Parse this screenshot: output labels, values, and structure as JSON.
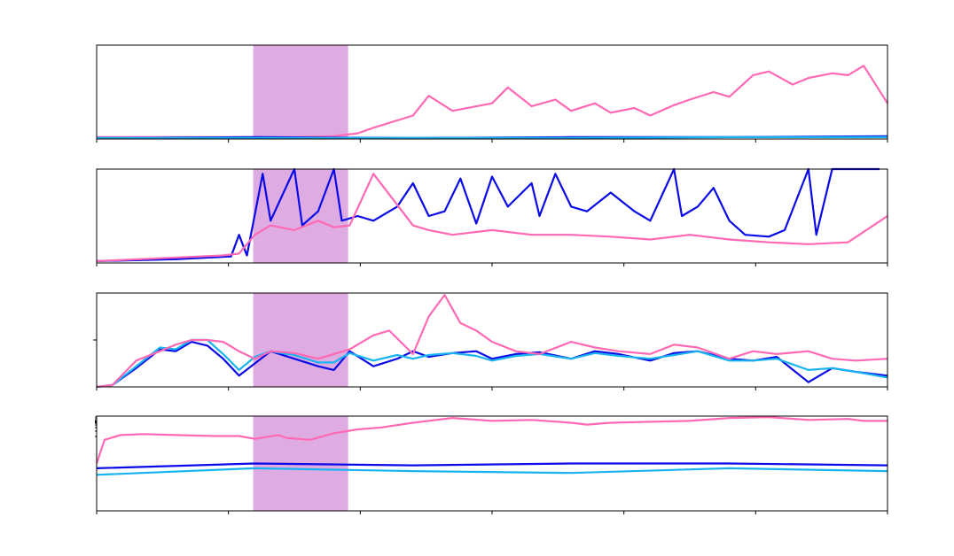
{
  "colors": {
    "blue": "#0a0ae6",
    "cyan": "#19b4f0",
    "pink": "#ff69b4",
    "shade": "#dca8e0",
    "axis": "#000000",
    "background": "#ffffff"
  },
  "chart_data": [
    {
      "type": "line",
      "title": "",
      "xlabel": "",
      "ylabel": "",
      "xlim": [
        0,
        1
      ],
      "ylim": [
        0,
        1
      ],
      "grid": false,
      "legend": "none",
      "shaded_x_range": [
        0.198,
        0.318
      ],
      "series": [
        {
          "color": "pink",
          "x": [
            0,
            0.05,
            0.1,
            0.15,
            0.2,
            0.25,
            0.3,
            0.33,
            0.35,
            0.4,
            0.42,
            0.45,
            0.5,
            0.52,
            0.55,
            0.58,
            0.6,
            0.63,
            0.65,
            0.68,
            0.7,
            0.73,
            0.75,
            0.78,
            0.8,
            0.83,
            0.85,
            0.88,
            0.9,
            0.93,
            0.95,
            0.97,
            1.0
          ],
          "y": [
            0.02,
            0.02,
            0.02,
            0.02,
            0.02,
            0.02,
            0.03,
            0.06,
            0.12,
            0.25,
            0.46,
            0.3,
            0.38,
            0.55,
            0.35,
            0.42,
            0.3,
            0.38,
            0.28,
            0.33,
            0.25,
            0.36,
            0.42,
            0.5,
            0.45,
            0.68,
            0.72,
            0.58,
            0.65,
            0.7,
            0.68,
            0.78,
            0.38
          ]
        },
        {
          "color": "blue",
          "x": [
            0,
            0.2,
            0.4,
            0.6,
            0.8,
            1.0
          ],
          "y": [
            0.01,
            0.02,
            0.01,
            0.02,
            0.02,
            0.03
          ]
        },
        {
          "color": "cyan",
          "x": [
            0,
            0.2,
            0.4,
            0.6,
            0.8,
            1.0
          ],
          "y": [
            0.01,
            0.01,
            0.01,
            0.01,
            0.02,
            0.02
          ]
        }
      ]
    },
    {
      "type": "line",
      "title": "",
      "xlabel": "",
      "ylabel": "",
      "xlim": [
        0,
        1
      ],
      "ylim": [
        0,
        1
      ],
      "grid": false,
      "legend": "none",
      "shaded_x_range": [
        0.198,
        0.318
      ],
      "series": [
        {
          "color": "blue",
          "x": [
            0,
            0.1,
            0.17,
            0.18,
            0.19,
            0.21,
            0.22,
            0.25,
            0.26,
            0.28,
            0.3,
            0.31,
            0.33,
            0.35,
            0.38,
            0.4,
            0.42,
            0.44,
            0.46,
            0.48,
            0.5,
            0.52,
            0.55,
            0.56,
            0.58,
            0.6,
            0.62,
            0.65,
            0.68,
            0.7,
            0.73,
            0.74,
            0.76,
            0.78,
            0.8,
            0.82,
            0.85,
            0.87,
            0.9,
            0.91,
            0.93,
            0.95,
            0.97,
            0.99
          ],
          "y": [
            0.02,
            0.04,
            0.07,
            0.3,
            0.08,
            0.95,
            0.45,
            1.0,
            0.4,
            0.55,
            1.0,
            0.45,
            0.5,
            0.45,
            0.6,
            0.85,
            0.5,
            0.55,
            0.9,
            0.42,
            0.92,
            0.6,
            0.85,
            0.5,
            0.95,
            0.6,
            0.55,
            0.75,
            0.55,
            0.45,
            1.0,
            0.5,
            0.6,
            0.8,
            0.45,
            0.3,
            0.28,
            0.35,
            1.0,
            0.3,
            1.0,
            1.0,
            1.0,
            1.0
          ]
        },
        {
          "color": "pink",
          "x": [
            0,
            0.08,
            0.16,
            0.18,
            0.2,
            0.22,
            0.25,
            0.28,
            0.3,
            0.32,
            0.35,
            0.4,
            0.42,
            0.45,
            0.5,
            0.55,
            0.6,
            0.65,
            0.7,
            0.75,
            0.8,
            0.85,
            0.9,
            0.95,
            1.0
          ],
          "y": [
            0.02,
            0.05,
            0.08,
            0.1,
            0.3,
            0.4,
            0.35,
            0.45,
            0.38,
            0.4,
            0.95,
            0.4,
            0.35,
            0.3,
            0.35,
            0.3,
            0.3,
            0.28,
            0.25,
            0.3,
            0.25,
            0.22,
            0.2,
            0.22,
            0.5
          ]
        }
      ]
    },
    {
      "type": "line",
      "title": "",
      "xlabel": "",
      "ylabel": "",
      "xlim": [
        0,
        1
      ],
      "ylim": [
        0,
        1
      ],
      "grid": false,
      "legend": "none",
      "shaded_x_range": [
        0.198,
        0.318
      ],
      "series": [
        {
          "color": "blue",
          "x": [
            0,
            0.02,
            0.05,
            0.08,
            0.1,
            0.12,
            0.14,
            0.16,
            0.18,
            0.2,
            0.22,
            0.25,
            0.28,
            0.3,
            0.32,
            0.35,
            0.38,
            0.4,
            0.42,
            0.45,
            0.48,
            0.5,
            0.53,
            0.56,
            0.6,
            0.63,
            0.66,
            0.7,
            0.73,
            0.76,
            0.8,
            0.83,
            0.86,
            0.9,
            0.93,
            0.96,
            1.0
          ],
          "y": [
            0.0,
            0.02,
            0.2,
            0.4,
            0.38,
            0.48,
            0.44,
            0.3,
            0.12,
            0.25,
            0.38,
            0.3,
            0.22,
            0.18,
            0.38,
            0.22,
            0.3,
            0.38,
            0.32,
            0.36,
            0.38,
            0.3,
            0.35,
            0.37,
            0.3,
            0.38,
            0.35,
            0.28,
            0.36,
            0.38,
            0.3,
            0.28,
            0.32,
            0.05,
            0.2,
            0.16,
            0.12
          ]
        },
        {
          "color": "cyan",
          "x": [
            0,
            0.02,
            0.05,
            0.08,
            0.1,
            0.12,
            0.14,
            0.16,
            0.18,
            0.2,
            0.22,
            0.25,
            0.28,
            0.3,
            0.32,
            0.35,
            0.38,
            0.4,
            0.42,
            0.45,
            0.48,
            0.5,
            0.53,
            0.56,
            0.6,
            0.63,
            0.66,
            0.7,
            0.73,
            0.76,
            0.8,
            0.83,
            0.86,
            0.9,
            0.93,
            0.96,
            1.0
          ],
          "y": [
            0.0,
            0.02,
            0.22,
            0.42,
            0.4,
            0.5,
            0.5,
            0.35,
            0.18,
            0.32,
            0.38,
            0.34,
            0.26,
            0.26,
            0.36,
            0.28,
            0.34,
            0.3,
            0.34,
            0.36,
            0.33,
            0.28,
            0.33,
            0.35,
            0.3,
            0.36,
            0.33,
            0.3,
            0.34,
            0.38,
            0.28,
            0.28,
            0.3,
            0.18,
            0.2,
            0.16,
            0.1
          ]
        },
        {
          "color": "pink",
          "x": [
            0,
            0.02,
            0.05,
            0.08,
            0.1,
            0.12,
            0.14,
            0.16,
            0.18,
            0.2,
            0.22,
            0.25,
            0.28,
            0.3,
            0.32,
            0.35,
            0.37,
            0.4,
            0.42,
            0.44,
            0.46,
            0.48,
            0.5,
            0.53,
            0.56,
            0.6,
            0.63,
            0.66,
            0.7,
            0.73,
            0.76,
            0.8,
            0.83,
            0.86,
            0.9,
            0.93,
            0.96,
            1.0
          ],
          "y": [
            0.0,
            0.02,
            0.28,
            0.38,
            0.45,
            0.5,
            0.5,
            0.48,
            0.38,
            0.3,
            0.38,
            0.36,
            0.3,
            0.35,
            0.4,
            0.55,
            0.6,
            0.35,
            0.75,
            0.98,
            0.68,
            0.6,
            0.48,
            0.38,
            0.35,
            0.48,
            0.42,
            0.38,
            0.35,
            0.45,
            0.42,
            0.3,
            0.38,
            0.35,
            0.38,
            0.3,
            0.28,
            0.3
          ]
        }
      ]
    },
    {
      "type": "line",
      "title": "",
      "xlabel": "",
      "ylabel": "",
      "xlim": [
        0,
        1
      ],
      "ylim": [
        0,
        1
      ],
      "yscale": "log",
      "grid": false,
      "legend": "none",
      "shaded_x_range": [
        0.198,
        0.318
      ],
      "series": [
        {
          "color": "pink",
          "x": [
            0,
            0.01,
            0.03,
            0.06,
            0.1,
            0.15,
            0.18,
            0.2,
            0.23,
            0.24,
            0.27,
            0.3,
            0.33,
            0.36,
            0.4,
            0.45,
            0.5,
            0.55,
            0.6,
            0.62,
            0.65,
            0.7,
            0.75,
            0.8,
            0.85,
            0.9,
            0.95,
            0.97,
            1.0
          ],
          "y": [
            0.5,
            0.75,
            0.8,
            0.81,
            0.8,
            0.79,
            0.79,
            0.76,
            0.8,
            0.77,
            0.75,
            0.82,
            0.86,
            0.88,
            0.93,
            0.98,
            0.95,
            0.96,
            0.93,
            0.91,
            0.93,
            0.94,
            0.95,
            0.98,
            0.99,
            0.96,
            0.97,
            0.95,
            0.95
          ]
        },
        {
          "color": "blue",
          "x": [
            0.0,
            0.2,
            0.4,
            0.6,
            0.8,
            1.0
          ],
          "y": [
            0.45,
            0.5,
            0.48,
            0.5,
            0.5,
            0.48
          ]
        },
        {
          "color": "cyan",
          "x": [
            0.0,
            0.2,
            0.4,
            0.6,
            0.8,
            1.0
          ],
          "y": [
            0.38,
            0.45,
            0.42,
            0.4,
            0.45,
            0.42
          ]
        }
      ]
    }
  ]
}
